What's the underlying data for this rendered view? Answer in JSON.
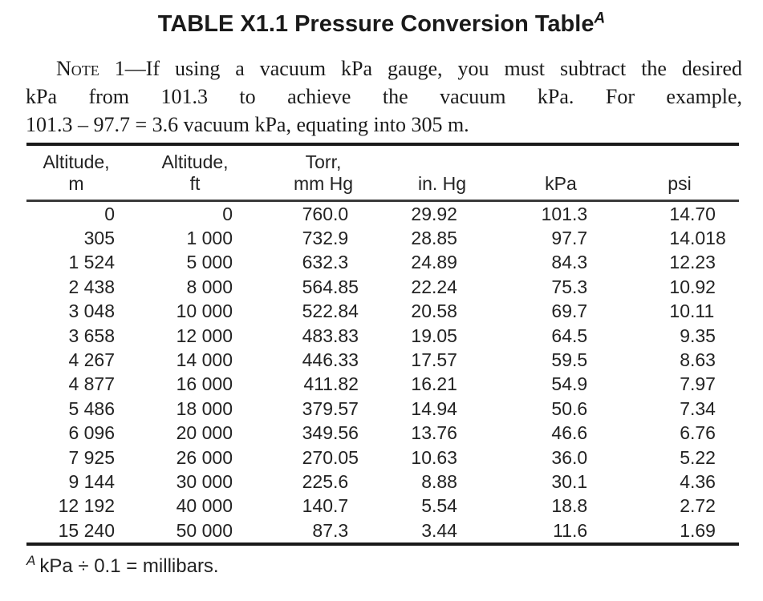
{
  "title": {
    "text": "TABLE X1.1 Pressure Conversion Table",
    "superscript": "A"
  },
  "note": {
    "label": "Note 1",
    "line1_rest": "—If using a vacuum kPa gauge, you must subtract the desired",
    "line2": "kPa from 101.3 to achieve the vacuum kPa. For example,",
    "line3": "101.3 – 97.7 = 3.6 vacuum kPa, equating into 305 m."
  },
  "table": {
    "columns": [
      {
        "header_line1": "Altitude,",
        "header_line2": "m"
      },
      {
        "header_line1": "Altitude,",
        "header_line2": "ft"
      },
      {
        "header_line1": "Torr,",
        "header_line2": "mm Hg"
      },
      {
        "header_line1": "",
        "header_line2": "in. Hg"
      },
      {
        "header_line1": "",
        "header_line2": "kPa"
      },
      {
        "header_line1": "",
        "header_line2": "psi"
      }
    ],
    "rows": [
      [
        "0",
        "0",
        "760.0",
        "29.92",
        "101.3",
        "14.70"
      ],
      [
        "305",
        "1 000",
        "732.9",
        "28.85",
        "97.7",
        "14.018"
      ],
      [
        "1 524",
        "5 000",
        "632.3",
        "24.89",
        "84.3",
        "12.23"
      ],
      [
        "2 438",
        "8 000",
        "564.85",
        "22.24",
        "75.3",
        "10.92"
      ],
      [
        "3 048",
        "10 000",
        "522.84",
        "20.58",
        "69.7",
        "10.11"
      ],
      [
        "3 658",
        "12 000",
        "483.83",
        "19.05",
        "64.5",
        "9.35"
      ],
      [
        "4 267",
        "14 000",
        "446.33",
        "17.57",
        "59.5",
        "8.63"
      ],
      [
        "4 877",
        "16 000",
        "411.82",
        "16.21",
        "54.9",
        "7.97"
      ],
      [
        "5 486",
        "18 000",
        "379.57",
        "14.94",
        "50.6",
        "7.34"
      ],
      [
        "6 096",
        "20 000",
        "349.56",
        "13.76",
        "46.6",
        "6.76"
      ],
      [
        "7 925",
        "26 000",
        "270.05",
        "10.63",
        "36.0",
        "5.22"
      ],
      [
        "9 144",
        "30 000",
        "225.6",
        "8.88",
        "30.1",
        "4.36"
      ],
      [
        "12 192",
        "40 000",
        "140.7",
        "5.54",
        "18.8",
        "2.72"
      ],
      [
        "15 240",
        "50 000",
        "87.3",
        "3.44",
        "11.6",
        "1.69"
      ]
    ]
  },
  "footnote": {
    "marker": "A",
    "text": "kPa ÷ 0.1 = millibars."
  }
}
